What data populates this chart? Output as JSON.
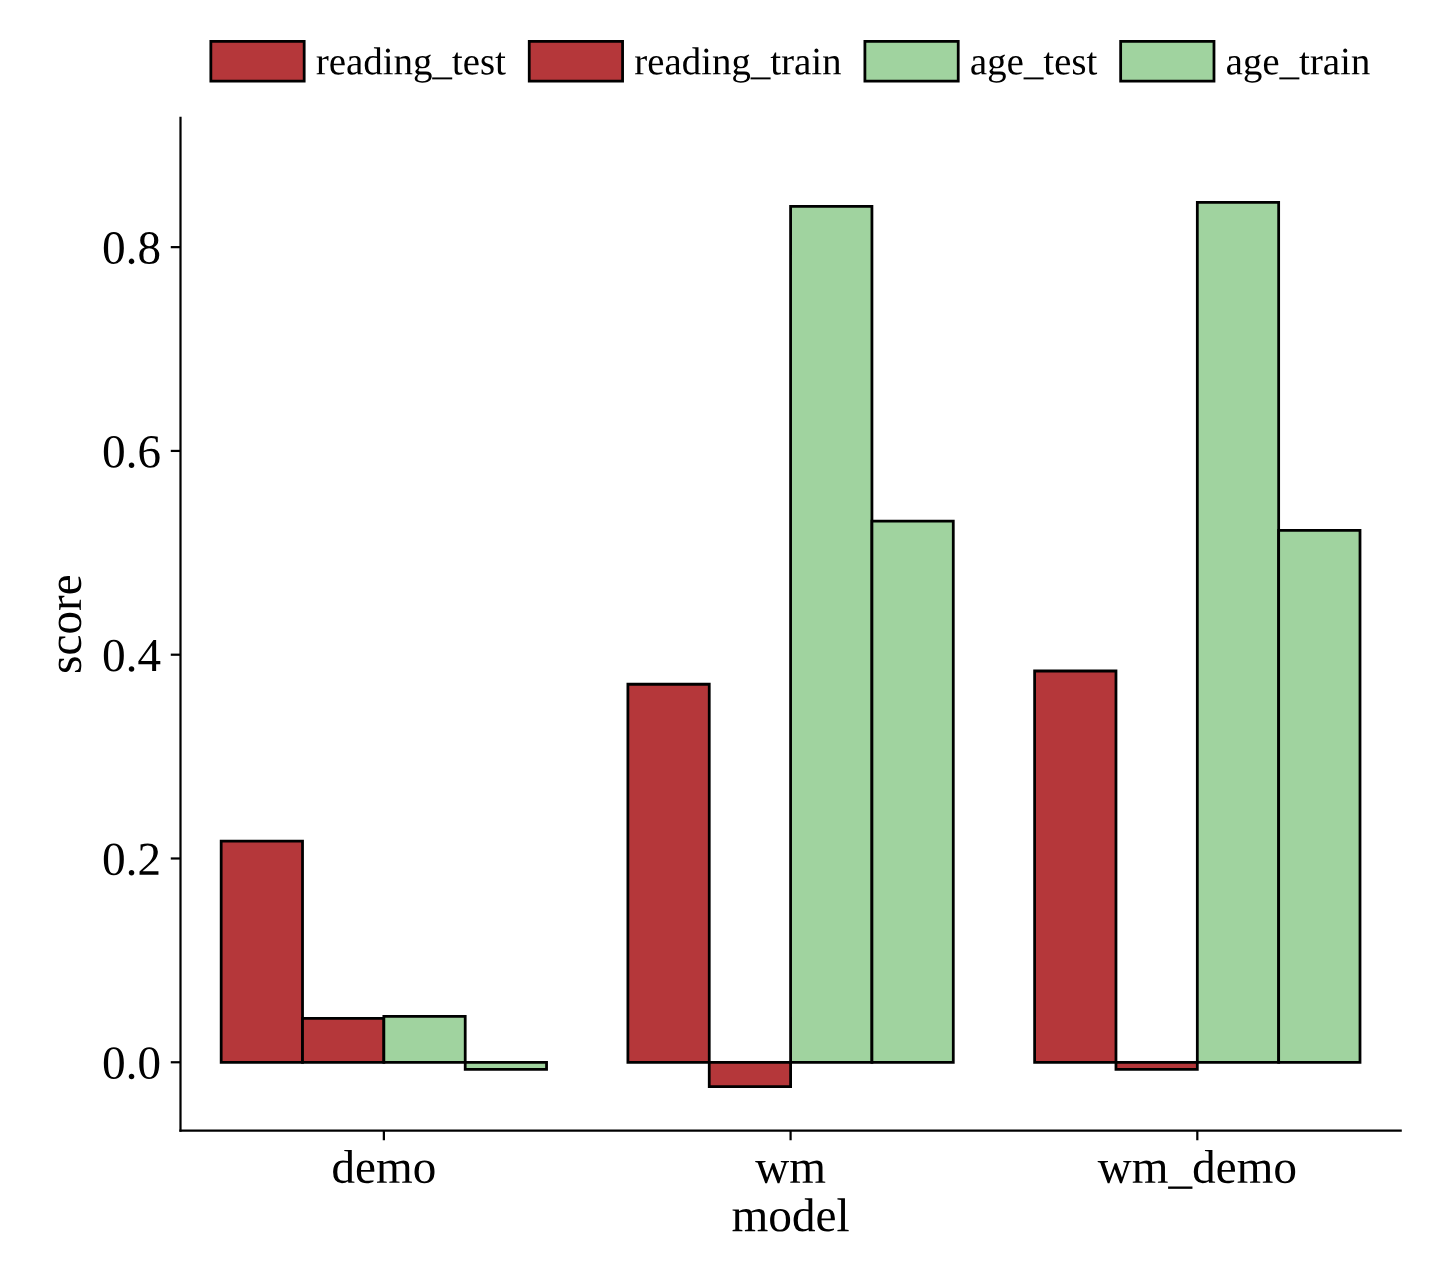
{
  "chart_data": {
    "type": "bar",
    "xlabel": "model",
    "ylabel": "score",
    "categories": [
      "demo",
      "wm",
      "wm_demo"
    ],
    "series": [
      {
        "name": "reading_test",
        "color": "#b5373a",
        "values": [
          0.217,
          0.371,
          0.384
        ]
      },
      {
        "name": "reading_train",
        "color": "#b5373a",
        "values": [
          0.043,
          -0.024,
          -0.007
        ]
      },
      {
        "name": "age_test",
        "color": "#a0d39f",
        "values": [
          0.045,
          0.84,
          0.844
        ]
      },
      {
        "name": "age_train",
        "color": "#a0d39f",
        "values": [
          -0.007,
          0.531,
          0.522
        ]
      }
    ],
    "ylim": [
      -0.067,
      0.927
    ],
    "yticks": [
      {
        "value": 0,
        "label": "0.0"
      },
      0.2,
      0.4,
      0.6,
      0.8
    ],
    "grid": false,
    "legend": "top"
  }
}
